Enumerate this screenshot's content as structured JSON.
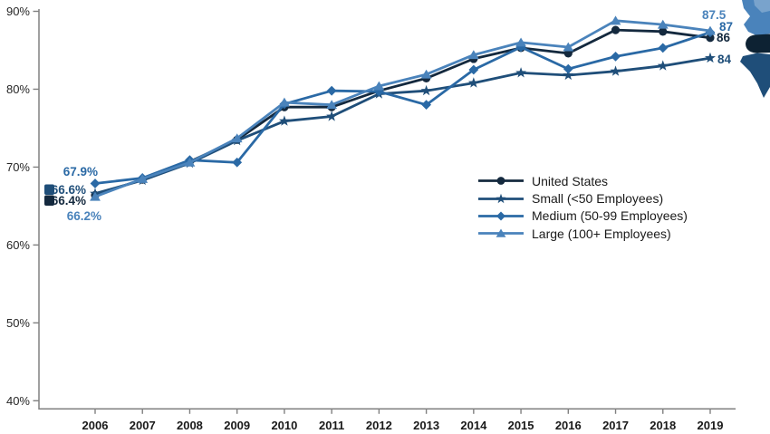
{
  "chart_data": {
    "type": "line",
    "title": "",
    "x": [
      2006,
      2007,
      2008,
      2009,
      2010,
      2011,
      2012,
      2013,
      2014,
      2015,
      2016,
      2017,
      2018,
      2019
    ],
    "y_axis": {
      "min": 40,
      "max": 90,
      "tick_step": 10,
      "tick_labels": [
        "40%",
        "50%",
        "60%",
        "70%",
        "80%",
        "90%"
      ]
    },
    "grid": false,
    "legend_position": "center-right",
    "series": [
      {
        "name": "United States",
        "marker": "circle",
        "color": "#14293E",
        "values": [
          66.4,
          68.4,
          70.7,
          73.5,
          77.7,
          77.7,
          79.8,
          81.4,
          83.9,
          85.3,
          84.6,
          87.6,
          87.4,
          86.6
        ]
      },
      {
        "name": "Small (<50 Employees)",
        "marker": "star",
        "color": "#1F4E79",
        "values": [
          66.6,
          68.3,
          70.5,
          73.4,
          75.9,
          76.5,
          79.4,
          79.8,
          80.8,
          82.1,
          81.8,
          82.3,
          83.0,
          84.0
        ]
      },
      {
        "name": "Medium (50-99 Employees)",
        "marker": "diamond",
        "color": "#2A69A5",
        "values": [
          67.9,
          68.6,
          70.9,
          70.6,
          78.1,
          79.8,
          79.7,
          78.0,
          82.5,
          85.4,
          82.6,
          84.2,
          85.3,
          87.3
        ]
      },
      {
        "name": "Large (100+ Employees)",
        "marker": "triangle",
        "color": "#4A83BB",
        "values": [
          66.2,
          68.5,
          70.6,
          73.7,
          78.3,
          78.0,
          80.4,
          81.9,
          84.4,
          86.0,
          85.4,
          88.8,
          88.3,
          87.5
        ]
      }
    ],
    "point_labels": {
      "start": [
        {
          "text": "67.9%",
          "series": "Medium (50-99 Employees)"
        },
        {
          "text": "66.6%",
          "series": "Small (<50 Employees)"
        },
        {
          "text": "66.4%",
          "series": "United States"
        },
        {
          "text": "66.2%",
          "series": "Large (100+ Employees)"
        }
      ],
      "end_visible": [
        {
          "text": "87.5",
          "series": "Large (100+ Employees)"
        },
        {
          "text": "87",
          "series": "Medium (50-99 Employees)"
        },
        {
          "text": "86",
          "series": "United States"
        },
        {
          "text": "84",
          "series": "Small (<50 Employees)"
        }
      ]
    }
  }
}
